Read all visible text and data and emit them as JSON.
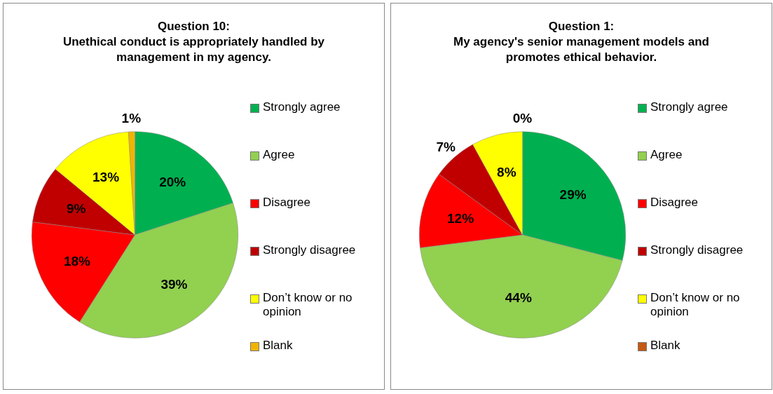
{
  "chart_data": [
    {
      "type": "pie",
      "title": "Question 10:",
      "subtitle": "Unethical conduct is appropriately handled by management in my agency.",
      "categories": [
        "Strongly agree",
        "Agree",
        "Disagree",
        "Strongly disagree",
        "Don’t know or no opinion",
        "Blank"
      ],
      "values": [
        20,
        39,
        18,
        9,
        13,
        1
      ],
      "value_labels": [
        "20%",
        "39%",
        "18%",
        "9%",
        "13%",
        "1%"
      ],
      "colors": [
        "#00b050",
        "#92d050",
        "#ff0000",
        "#c00000",
        "#ffff00",
        "#f0b400"
      ],
      "legend": "right"
    },
    {
      "type": "pie",
      "title": "Question 1:",
      "subtitle": "My agency's senior management models and promotes ethical behavior.",
      "categories": [
        "Strongly agree",
        "Agree",
        "Disagree",
        "Strongly disagree",
        "Don’t know or no opinion",
        "Blank"
      ],
      "values": [
        29,
        44,
        12,
        7,
        8,
        0
      ],
      "value_labels": [
        "29%",
        "44%",
        "12%",
        "7%",
        "8%",
        "0%"
      ],
      "colors": [
        "#00b050",
        "#92d050",
        "#ff0000",
        "#c00000",
        "#ffff00",
        "#c65911"
      ],
      "legend": "right"
    }
  ]
}
